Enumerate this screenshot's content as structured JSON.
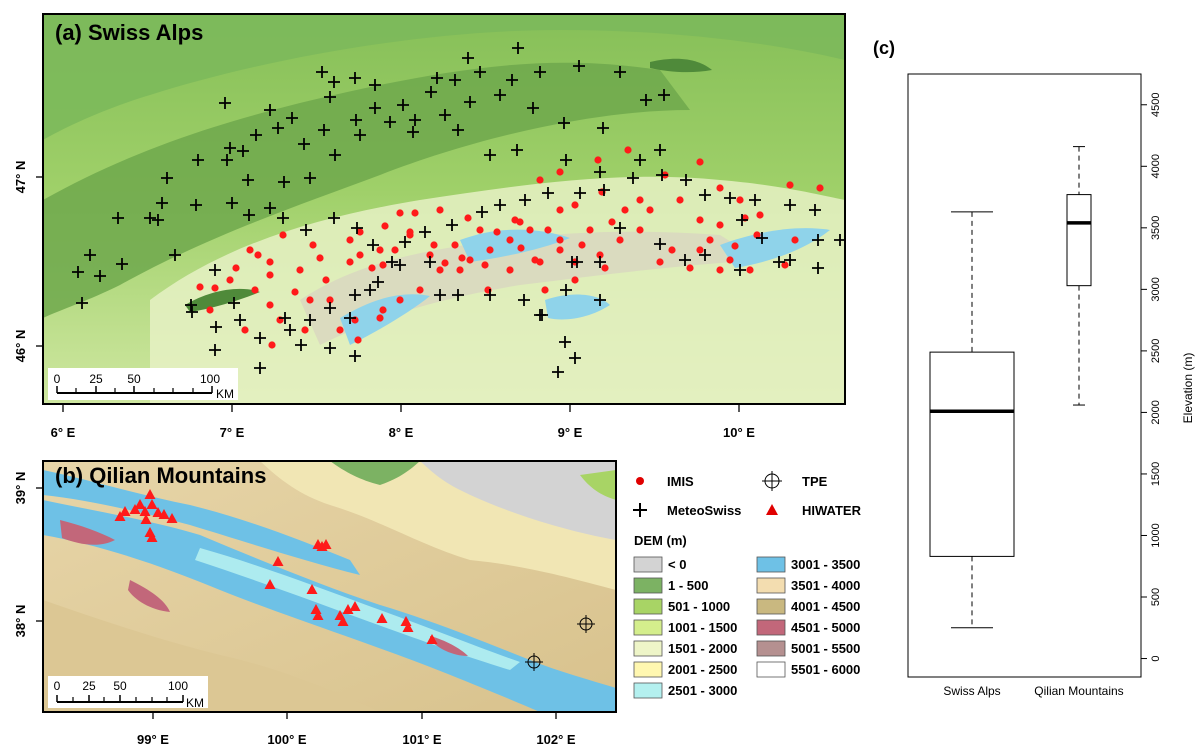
{
  "panel_a": {
    "title": "(a) Swiss Alps",
    "x_ticks": [
      "6° E",
      "7° E",
      "8° E",
      "9° E",
      "10° E"
    ],
    "y_ticks": [
      "47° N",
      "46° N"
    ],
    "scale": {
      "labels": [
        "0",
        "25",
        "50",
        "100"
      ],
      "unit": "KM"
    }
  },
  "panel_b": {
    "title": "(b) Qilian Mountains",
    "x_ticks": [
      "99° E",
      "100° E",
      "101° E",
      "102° E"
    ],
    "y_ticks": [
      "39° N",
      "38° N"
    ],
    "scale": {
      "labels": [
        "0",
        "25",
        "50",
        "100"
      ],
      "unit": "KM"
    }
  },
  "legend": {
    "symbols": [
      {
        "label": "IMIS",
        "icon": "red-dot-icon"
      },
      {
        "label": "TPE",
        "icon": "crosshair-circle-icon"
      },
      {
        "label": "MeteoSwiss",
        "icon": "black-plus-icon"
      },
      {
        "label": "HIWATER",
        "icon": "red-triangle-icon"
      }
    ],
    "dem_title": "DEM (m)",
    "dem_classes": [
      {
        "label": "< 0",
        "color": "#d3d3d3"
      },
      {
        "label": "1 - 500",
        "color": "#7cb263"
      },
      {
        "label": "501 - 1000",
        "color": "#a8d465"
      },
      {
        "label": "1001 - 1500",
        "color": "#d4ee8c"
      },
      {
        "label": "1501 - 2000",
        "color": "#eef5c8"
      },
      {
        "label": "2001 - 2500",
        "color": "#fff7b0"
      },
      {
        "label": "2501 - 3000",
        "color": "#b4f0ef"
      },
      {
        "label": "3001 - 3500",
        "color": "#6ec1e6"
      },
      {
        "label": "3501 - 4000",
        "color": "#f3ddb0"
      },
      {
        "label": "4001 - 4500",
        "color": "#c9b880"
      },
      {
        "label": "4501 - 5000",
        "color": "#c2677a"
      },
      {
        "label": "5001 - 5500",
        "color": "#b59090"
      },
      {
        "label": "5501 - 6000",
        "color": "#ffffff"
      }
    ]
  },
  "chart_data": {
    "type": "box",
    "title": "(c)",
    "ylabel": "Elevation (m)",
    "ylim": [
      -150,
      4750
    ],
    "y_ticks": [
      0,
      500,
      1000,
      1500,
      2000,
      2500,
      3000,
      3500,
      4000,
      4500
    ],
    "categories": [
      "Swiss Alps",
      "Qilian Mountains"
    ],
    "boxes": [
      {
        "name": "Swiss Alps",
        "min": 250,
        "q1": 830,
        "median": 2010,
        "q3": 2490,
        "max": 3630
      },
      {
        "name": "Qilian Mountains",
        "min": 2060,
        "q1": 3030,
        "median": 3540,
        "q3": 3770,
        "max": 4160
      }
    ]
  }
}
